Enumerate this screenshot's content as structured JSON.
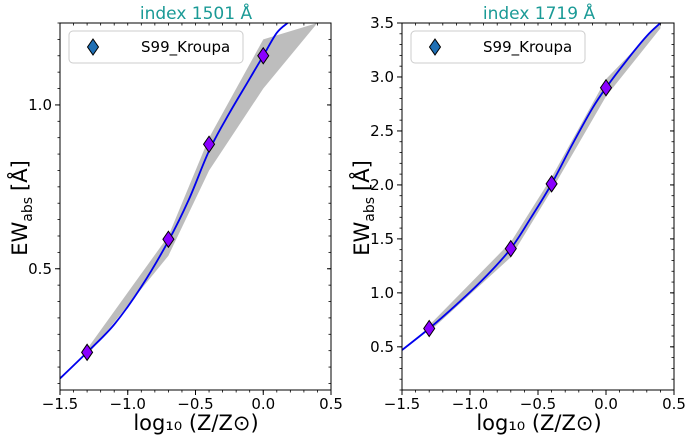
{
  "chart_data": [
    {
      "type": "line",
      "title": "index 1501 Å",
      "ylabel_main": "EW",
      "ylabel_sub": "abs",
      "ylabel_unit": "[Å]",
      "xlabel": "log₁₀ (Z/Z⊙)",
      "xlim": [
        -1.5,
        0.5
      ],
      "ylim": [
        0.13,
        1.25
      ],
      "xticks": [
        -1.5,
        -1.0,
        -0.5,
        0.0,
        0.5
      ],
      "xtick_labels": [
        "−1.5",
        "−1.0",
        "−0.5",
        "0.0",
        "0.5"
      ],
      "yticks": [
        0.5,
        1.0
      ],
      "ytick_labels": [
        "0.5",
        "1.0"
      ],
      "legend": {
        "label": "S99_Kroupa",
        "position": "top-left"
      },
      "points": {
        "name": "S99_Kroupa",
        "x": [
          -1.3,
          -0.7,
          -0.4,
          0.0
        ],
        "y": [
          0.245,
          0.59,
          0.88,
          1.15
        ]
      },
      "curve": {
        "x": [
          -1.5,
          -1.3,
          -1.1,
          -0.9,
          -0.7,
          -0.55,
          -0.4,
          -0.25,
          -0.1,
          0.0,
          0.1,
          0.18
        ],
        "y": [
          0.165,
          0.245,
          0.33,
          0.445,
          0.585,
          0.71,
          0.86,
          0.975,
          1.08,
          1.15,
          1.22,
          1.25
        ]
      },
      "band": {
        "x": [
          -1.3,
          -0.7,
          -0.4,
          0.0,
          0.4
        ],
        "lower": [
          0.235,
          0.54,
          0.8,
          1.05,
          1.25
        ],
        "upper": [
          0.255,
          0.6,
          0.9,
          1.2,
          1.25
        ]
      },
      "colors": {
        "curve": "#0000ee",
        "marker": "#8a00ff",
        "band": "#bdbdbd",
        "title": "#1a9a96",
        "legend_marker": "#1f6fb4"
      }
    },
    {
      "type": "line",
      "title": "index 1719 Å",
      "ylabel_main": "EW",
      "ylabel_sub": "abs",
      "ylabel_unit": "[Å]",
      "xlabel": "log₁₀ (Z/Z⊙)",
      "xlim": [
        -1.5,
        0.5
      ],
      "ylim": [
        0.1,
        3.5
      ],
      "xticks": [
        -1.5,
        -1.0,
        -0.5,
        0.0,
        0.5
      ],
      "xtick_labels": [
        "−1.5",
        "−1.0",
        "−0.5",
        "0.0",
        "0.5"
      ],
      "yticks": [
        0.5,
        1.0,
        1.5,
        2.0,
        2.5,
        3.0,
        3.5
      ],
      "ytick_labels": [
        "0.5",
        "1.0",
        "1.5",
        "2.0",
        "2.5",
        "3.0",
        "3.5"
      ],
      "legend": {
        "label": "S99_Kroupa",
        "position": "top-left"
      },
      "points": {
        "name": "S99_Kroupa",
        "x": [
          -1.3,
          -0.7,
          -0.4,
          0.0
        ],
        "y": [
          0.67,
          1.41,
          2.01,
          2.9
        ]
      },
      "curve": {
        "x": [
          -1.5,
          -1.3,
          -1.1,
          -0.9,
          -0.7,
          -0.55,
          -0.4,
          -0.25,
          -0.1,
          0.0,
          0.15,
          0.3,
          0.4
        ],
        "y": [
          0.47,
          0.67,
          0.89,
          1.13,
          1.41,
          1.7,
          2.01,
          2.37,
          2.71,
          2.9,
          3.15,
          3.38,
          3.5
        ]
      },
      "band": {
        "x": [
          -1.3,
          -0.7,
          -0.4,
          0.0,
          0.4
        ],
        "lower": [
          0.64,
          1.33,
          1.95,
          2.82,
          3.45
        ],
        "upper": [
          0.7,
          1.47,
          2.07,
          2.98,
          3.5
        ]
      },
      "colors": {
        "curve": "#0000ee",
        "marker": "#8a00ff",
        "band": "#bdbdbd",
        "title": "#1a9a96",
        "legend_marker": "#1f6fb4"
      }
    }
  ]
}
